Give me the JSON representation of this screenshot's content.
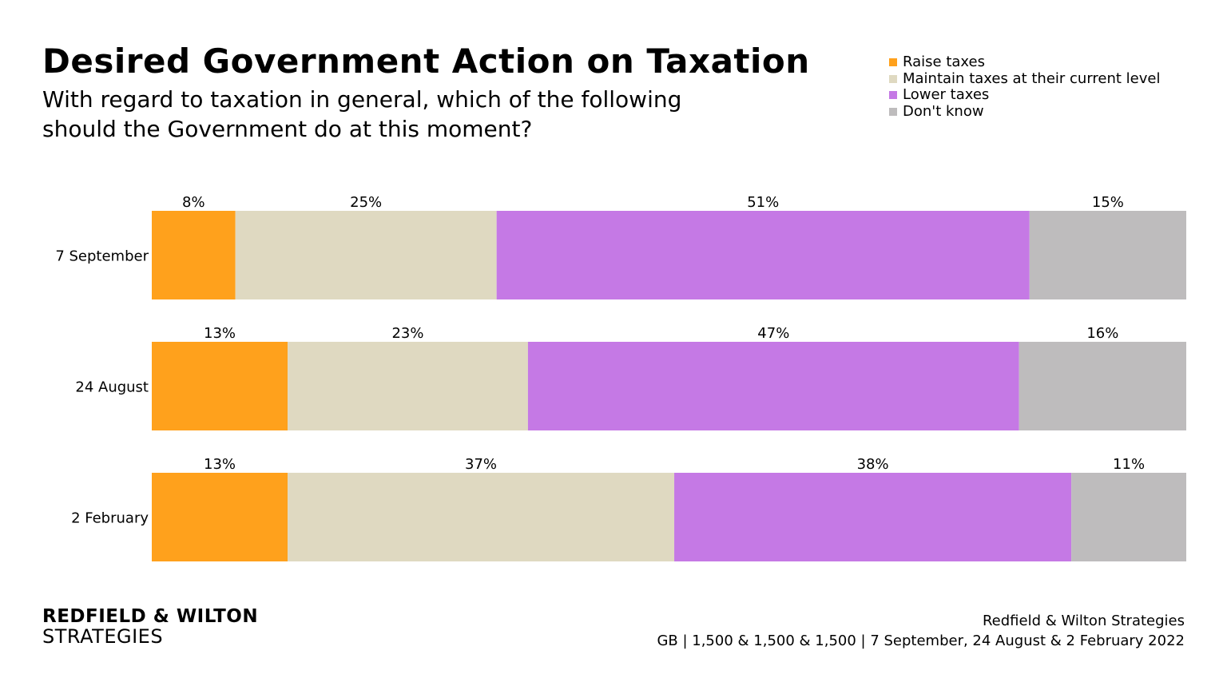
{
  "title": "Desired Government Action on Taxation",
  "subtitle": "With regard to taxation in general, which of the following should the Government do at this moment?",
  "legend": [
    {
      "label": "Raise taxes",
      "color": "#FFA11C"
    },
    {
      "label": "Maintain taxes at their current level",
      "color": "#DFD9C1"
    },
    {
      "label": "Lower taxes",
      "color": "#C579E5"
    },
    {
      "label": "Don't know",
      "color": "#BEBCBD"
    }
  ],
  "chart_data": {
    "type": "bar",
    "stacked": true,
    "orientation": "horizontal",
    "categories": [
      "7 September",
      "24 August",
      "2 February"
    ],
    "series": [
      {
        "name": "Raise taxes",
        "color": "#FFA11C",
        "values": [
          8,
          13,
          13
        ]
      },
      {
        "name": "Maintain taxes at their current level",
        "color": "#DFD9C1",
        "values": [
          25,
          23,
          37
        ]
      },
      {
        "name": "Lower taxes",
        "color": "#C579E5",
        "values": [
          51,
          47,
          38
        ]
      },
      {
        "name": "Don't know",
        "color": "#BEBCBD",
        "values": [
          15,
          16,
          11
        ]
      }
    ],
    "value_suffix": "%",
    "legend_position": "top-right",
    "grid": false
  },
  "footer": {
    "logo_line1": "REDFIELD & WILTON",
    "logo_line2": "STRATEGIES",
    "source_line1": "Redfield & Wilton Strategies",
    "source_line2": "GB | 1,500 & 1,500 & 1,500 | 7 September, 24 August & 2 February 2022"
  }
}
